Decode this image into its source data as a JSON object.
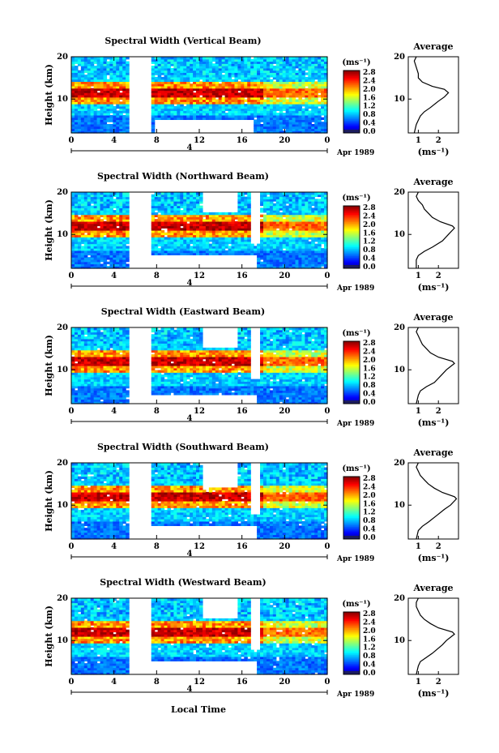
{
  "figure": {
    "xlabel": "Local Time"
  },
  "chart_data": [
    {
      "type": "heatmap",
      "title": "Spectral Width (Vertical Beam)",
      "ylabel": "Height (km)",
      "xlabel": "Local Time",
      "x_ticks": [
        "0",
        "4",
        "8",
        "12",
        "16",
        "20",
        "0"
      ],
      "y_ticks": [
        "10",
        "20"
      ],
      "date_label": "4",
      "month_label": "Apr 1989",
      "xlim": [
        0,
        24
      ],
      "ylim": [
        2,
        20
      ],
      "colorbar": {
        "unit": "(ms⁻¹)",
        "ticks": [
          "2.8",
          "2.4",
          "2.0",
          "1.6",
          "1.2",
          "0.8",
          "0.4",
          "0.0"
        ],
        "range": [
          0,
          2.8
        ]
      },
      "gaps": [
        [
          5.3,
          7.5,
          2,
          20
        ],
        [
          7.7,
          17.2,
          2,
          5
        ]
      ],
      "features": {
        "max_layer_height_km": 11.5,
        "low_layer_below_km": 6
      },
      "average": {
        "title": "Average",
        "xlabel": "(ms⁻¹)",
        "x_ticks": [
          "1",
          "2"
        ],
        "y_ticks": [
          "10",
          "20"
        ],
        "profile": [
          [
            0.8,
            2
          ],
          [
            0.9,
            4
          ],
          [
            1.0,
            5
          ],
          [
            1.1,
            6
          ],
          [
            1.3,
            7
          ],
          [
            1.6,
            8
          ],
          [
            2.0,
            9.5
          ],
          [
            2.3,
            10.5
          ],
          [
            2.5,
            11.5
          ],
          [
            2.3,
            12.3
          ],
          [
            1.7,
            13
          ],
          [
            1.2,
            14
          ],
          [
            1.0,
            15
          ],
          [
            1.0,
            16
          ],
          [
            0.9,
            17.5
          ],
          [
            0.8,
            19
          ],
          [
            0.9,
            20
          ]
        ]
      }
    },
    {
      "type": "heatmap",
      "title": "Spectral Width (Northward Beam)",
      "ylabel": "Height (km)",
      "xlabel": "Local Time",
      "x_ticks": [
        "0",
        "4",
        "8",
        "12",
        "16",
        "20",
        "0"
      ],
      "y_ticks": [
        "10",
        "20"
      ],
      "date_label": "4",
      "month_label": "Apr 1989",
      "xlim": [
        0,
        24
      ],
      "ylim": [
        2,
        20
      ],
      "colorbar": {
        "unit": "(ms⁻¹)",
        "ticks": [
          "2.8",
          "2.4",
          "2.0",
          "1.6",
          "1.2",
          "0.8",
          "0.4",
          "0.0"
        ],
        "range": [
          0,
          2.8
        ]
      },
      "gaps": [
        [
          5.3,
          7.4,
          2,
          20
        ],
        [
          7.6,
          17.4,
          2,
          5
        ],
        [
          12.2,
          15.5,
          15,
          20
        ],
        [
          16.8,
          17.6,
          8,
          20
        ]
      ],
      "features": {
        "max_layer_height_km": 12,
        "low_layer_below_km": 6
      },
      "average": {
        "title": "Average",
        "xlabel": "(ms⁻¹)",
        "x_ticks": [
          "1",
          "2"
        ],
        "y_ticks": [
          "10",
          "20"
        ],
        "profile": [
          [
            0.9,
            2
          ],
          [
            0.9,
            4
          ],
          [
            1.0,
            5
          ],
          [
            1.3,
            6
          ],
          [
            1.7,
            7
          ],
          [
            2.2,
            8.5
          ],
          [
            2.5,
            10
          ],
          [
            2.8,
            11.5
          ],
          [
            2.7,
            12
          ],
          [
            2.1,
            13
          ],
          [
            1.7,
            14
          ],
          [
            1.5,
            15
          ],
          [
            1.3,
            16
          ],
          [
            1.2,
            17
          ],
          [
            1.0,
            18
          ],
          [
            0.9,
            19
          ],
          [
            1.0,
            20
          ]
        ]
      }
    },
    {
      "type": "heatmap",
      "title": "Spectral Width (Eastward Beam)",
      "ylabel": "Height (km)",
      "xlabel": "Local Time",
      "x_ticks": [
        "0",
        "4",
        "8",
        "12",
        "16",
        "20",
        "0"
      ],
      "y_ticks": [
        "10",
        "20"
      ],
      "date_label": "4",
      "month_label": "Apr 1989",
      "xlim": [
        0,
        24
      ],
      "ylim": [
        2,
        20
      ],
      "colorbar": {
        "unit": "(ms⁻¹)",
        "ticks": [
          "2.8",
          "2.4",
          "2.0",
          "1.6",
          "1.2",
          "0.8",
          "0.4",
          "0.0"
        ],
        "range": [
          0,
          2.8
        ]
      },
      "gaps": [
        [
          5.3,
          7.4,
          2,
          20
        ],
        [
          7.6,
          17.4,
          2,
          4
        ],
        [
          12.2,
          15.5,
          15,
          20
        ],
        [
          16.8,
          17.6,
          8,
          20
        ]
      ],
      "features": {
        "max_layer_height_km": 12,
        "low_layer_below_km": 6
      },
      "average": {
        "title": "Average",
        "xlabel": "(ms⁻¹)",
        "x_ticks": [
          "1",
          "2"
        ],
        "y_ticks": [
          "10",
          "20"
        ],
        "profile": [
          [
            0.9,
            2
          ],
          [
            1.0,
            4
          ],
          [
            1.1,
            5
          ],
          [
            1.4,
            6
          ],
          [
            1.8,
            7
          ],
          [
            2.2,
            9
          ],
          [
            2.4,
            10
          ],
          [
            2.8,
            11.5
          ],
          [
            2.7,
            12
          ],
          [
            2.0,
            13
          ],
          [
            1.6,
            14
          ],
          [
            1.4,
            15
          ],
          [
            1.2,
            16
          ],
          [
            1.1,
            17
          ],
          [
            1.0,
            18
          ],
          [
            0.9,
            19
          ],
          [
            1.0,
            20
          ]
        ]
      }
    },
    {
      "type": "heatmap",
      "title": "Spectral Width (Southward Beam)",
      "ylabel": "Height (km)",
      "xlabel": "Local Time",
      "x_ticks": [
        "0",
        "4",
        "8",
        "12",
        "16",
        "20",
        "0"
      ],
      "y_ticks": [
        "10",
        "20"
      ],
      "date_label": "4",
      "month_label": "Apr 1989",
      "xlim": [
        0,
        24
      ],
      "ylim": [
        2,
        20
      ],
      "colorbar": {
        "unit": "(ms⁻¹)",
        "ticks": [
          "2.8",
          "2.4",
          "2.0",
          "1.6",
          "1.2",
          "0.8",
          "0.4",
          "0.0"
        ],
        "range": [
          0,
          2.8
        ]
      },
      "gaps": [
        [
          5.3,
          7.4,
          2,
          20
        ],
        [
          7.6,
          17.4,
          2,
          5
        ],
        [
          12.2,
          15.5,
          14,
          20
        ],
        [
          16.8,
          17.6,
          8,
          20
        ]
      ],
      "features": {
        "max_layer_height_km": 12,
        "low_layer_below_km": 6
      },
      "average": {
        "title": "Average",
        "xlabel": "(ms⁻¹)",
        "x_ticks": [
          "1",
          "2"
        ],
        "y_ticks": [
          "10",
          "20"
        ],
        "profile": [
          [
            0.9,
            2
          ],
          [
            1.0,
            4
          ],
          [
            1.2,
            5
          ],
          [
            1.5,
            6
          ],
          [
            1.9,
            7.5
          ],
          [
            2.3,
            9
          ],
          [
            2.6,
            10
          ],
          [
            2.9,
            11.5
          ],
          [
            2.8,
            12
          ],
          [
            2.2,
            13
          ],
          [
            1.8,
            14
          ],
          [
            1.5,
            15
          ],
          [
            1.3,
            16
          ],
          [
            1.1,
            17
          ],
          [
            1.0,
            18
          ],
          [
            0.9,
            19
          ],
          [
            1.0,
            20
          ]
        ]
      }
    },
    {
      "type": "heatmap",
      "title": "Spectral Width (Westward Beam)",
      "ylabel": "Height (km)",
      "xlabel": "Local Time",
      "x_ticks": [
        "0",
        "4",
        "8",
        "12",
        "16",
        "20",
        "0"
      ],
      "y_ticks": [
        "10",
        "20"
      ],
      "date_label": "4",
      "month_label": "Apr 1989",
      "xlim": [
        0,
        24
      ],
      "ylim": [
        2,
        20
      ],
      "colorbar": {
        "unit": "(ms⁻¹)",
        "ticks": [
          "2.8",
          "2.4",
          "2.0",
          "1.6",
          "1.2",
          "0.8",
          "0.4",
          "0.0"
        ],
        "range": [
          0,
          2.8
        ]
      },
      "gaps": [
        [
          5.3,
          7.4,
          2,
          20
        ],
        [
          7.6,
          17.4,
          2,
          5
        ],
        [
          12.2,
          15.5,
          15,
          20
        ],
        [
          16.8,
          17.6,
          8,
          20
        ]
      ],
      "features": {
        "max_layer_height_km": 12,
        "low_layer_below_km": 6
      },
      "average": {
        "title": "Average",
        "xlabel": "(ms⁻¹)",
        "x_ticks": [
          "1",
          "2"
        ],
        "y_ticks": [
          "10",
          "20"
        ],
        "profile": [
          [
            0.9,
            2
          ],
          [
            1.0,
            4
          ],
          [
            1.1,
            5
          ],
          [
            1.4,
            6
          ],
          [
            1.7,
            7
          ],
          [
            2.2,
            9
          ],
          [
            2.4,
            10
          ],
          [
            2.8,
            11.5
          ],
          [
            2.7,
            12
          ],
          [
            2.0,
            13
          ],
          [
            1.6,
            14
          ],
          [
            1.3,
            15
          ],
          [
            1.1,
            16
          ],
          [
            1.0,
            17
          ],
          [
            0.9,
            18
          ],
          [
            0.9,
            19
          ],
          [
            1.0,
            20
          ]
        ]
      }
    }
  ]
}
